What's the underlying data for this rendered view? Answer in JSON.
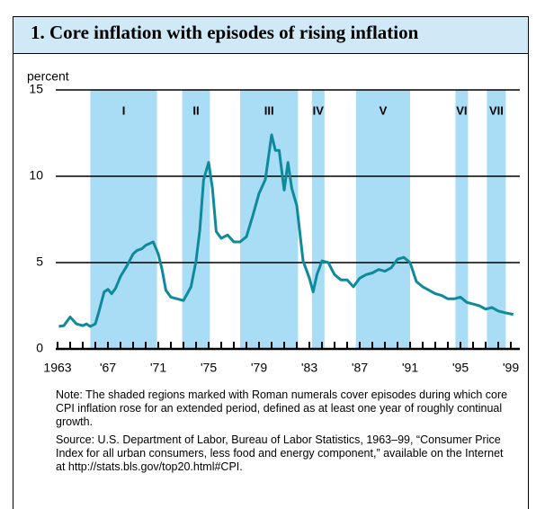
{
  "chart_data": {
    "type": "line",
    "title": "1. Core inflation with episodes of rising inflation",
    "y_label": "percent",
    "xlim": [
      1963,
      1999.5
    ],
    "ylim": [
      0,
      15
    ],
    "yticks": [
      0,
      5,
      10,
      15
    ],
    "xticks": [
      1963,
      {
        "value": 1964,
        "label": null
      },
      {
        "value": 1965,
        "label": null
      },
      {
        "value": 1966,
        "label": null
      },
      {
        "value": 1967,
        "label": "'67"
      },
      {
        "value": 1968,
        "label": null
      },
      {
        "value": 1969,
        "label": null
      },
      {
        "value": 1970,
        "label": null
      },
      {
        "value": 1971,
        "label": "'71"
      },
      {
        "value": 1972,
        "label": null
      },
      {
        "value": 1973,
        "label": null
      },
      {
        "value": 1974,
        "label": null
      },
      {
        "value": 1975,
        "label": "'75"
      },
      {
        "value": 1976,
        "label": null
      },
      {
        "value": 1977,
        "label": null
      },
      {
        "value": 1978,
        "label": null
      },
      {
        "value": 1979,
        "label": "'79"
      },
      {
        "value": 1980,
        "label": null
      },
      {
        "value": 1981,
        "label": null
      },
      {
        "value": 1982,
        "label": null
      },
      {
        "value": 1983,
        "label": "'83"
      },
      {
        "value": 1984,
        "label": null
      },
      {
        "value": 1985,
        "label": null
      },
      {
        "value": 1986,
        "label": null
      },
      {
        "value": 1987,
        "label": "'87"
      },
      {
        "value": 1988,
        "label": null
      },
      {
        "value": 1989,
        "label": null
      },
      {
        "value": 1990,
        "label": null
      },
      {
        "value": 1991,
        "label": "'91"
      },
      {
        "value": 1992,
        "label": null
      },
      {
        "value": 1993,
        "label": null
      },
      {
        "value": 1994,
        "label": null
      },
      {
        "value": 1995,
        "label": "'95"
      },
      {
        "value": 1996,
        "label": null
      },
      {
        "value": 1997,
        "label": null
      },
      {
        "value": 1998,
        "label": null
      },
      {
        "value": 1999,
        "label": "'99"
      }
    ],
    "grid": true,
    "episodes": [
      {
        "label": "I",
        "start": 1965.6,
        "end": 1970.9
      },
      {
        "label": "II",
        "start": 1972.9,
        "end": 1975.1
      },
      {
        "label": "III",
        "start": 1977.5,
        "end": 1982.1
      },
      {
        "label": "IV",
        "start": 1983.2,
        "end": 1984.2
      },
      {
        "label": "V",
        "start": 1986.7,
        "end": 1991.0
      },
      {
        "label": "VI",
        "start": 1994.6,
        "end": 1995.6
      },
      {
        "label": "VII",
        "start": 1997.1,
        "end": 1998.6
      }
    ],
    "episode_color": "#a9dcf5",
    "series": [
      {
        "color": "#0f8a9b",
        "x": [
          1963.1,
          1963.5,
          1964,
          1964.5,
          1965,
          1965.3,
          1965.6,
          1966,
          1966.3,
          1966.7,
          1967,
          1967.3,
          1967.6,
          1968,
          1968.5,
          1969,
          1969.3,
          1969.7,
          1970,
          1970.3,
          1970.6,
          1971,
          1971.3,
          1971.6,
          1972,
          1972.5,
          1973,
          1973.3,
          1973.6,
          1974,
          1974.3,
          1974.6,
          1975,
          1975.3,
          1975.6,
          1976,
          1976.5,
          1977,
          1977.5,
          1978,
          1978.5,
          1979,
          1979.5,
          1980,
          1980.3,
          1980.6,
          1981,
          1981.3,
          1981.6,
          1982,
          1982.5,
          1983,
          1983.3,
          1983.6,
          1984,
          1984.5,
          1985,
          1985.5,
          1986,
          1986.5,
          1987,
          1987.5,
          1988,
          1988.5,
          1989,
          1989.5,
          1990,
          1990.5,
          1991,
          1991.5,
          1992,
          1992.5,
          1993,
          1993.5,
          1994,
          1994.5,
          1995,
          1995.5,
          1996,
          1996.5,
          1997,
          1997.5,
          1998,
          1998.5,
          1999.2
        ],
        "values": [
          1.3,
          1.35,
          1.85,
          1.45,
          1.35,
          1.45,
          1.3,
          1.45,
          2.2,
          3.3,
          3.45,
          3.2,
          3.5,
          4.2,
          4.8,
          5.5,
          5.7,
          5.8,
          6.0,
          6.1,
          6.2,
          5.5,
          4.6,
          3.4,
          3.0,
          2.9,
          2.8,
          3.2,
          3.6,
          5.1,
          6.9,
          9.8,
          10.8,
          9.3,
          6.8,
          6.4,
          6.6,
          6.2,
          6.2,
          6.5,
          7.7,
          9.0,
          9.8,
          12.4,
          11.5,
          11.5,
          9.2,
          10.8,
          9.3,
          8.3,
          5.1,
          4.1,
          3.3,
          4.3,
          5.1,
          5.0,
          4.3,
          4.0,
          4.0,
          3.6,
          4.1,
          4.3,
          4.4,
          4.6,
          4.5,
          4.7,
          5.2,
          5.3,
          5.0,
          3.9,
          3.6,
          3.4,
          3.2,
          3.1,
          2.9,
          2.9,
          3.0,
          2.7,
          2.6,
          2.5,
          2.3,
          2.4,
          2.2,
          2.1,
          2.0
        ]
      }
    ]
  },
  "notes": [
    "Note: The shaded regions marked with Roman numerals cover episodes during which core CPI inflation rose for an extended period, defined as at least one year of roughly continual growth.",
    "Source: U.S. Department of Labor, Bureau of Labor Statistics, 1963–99, “Consumer Price Index for all urban consumers, less food and energy component,” available on the Internet at http://stats.bls.gov/top20.html#CPI."
  ]
}
